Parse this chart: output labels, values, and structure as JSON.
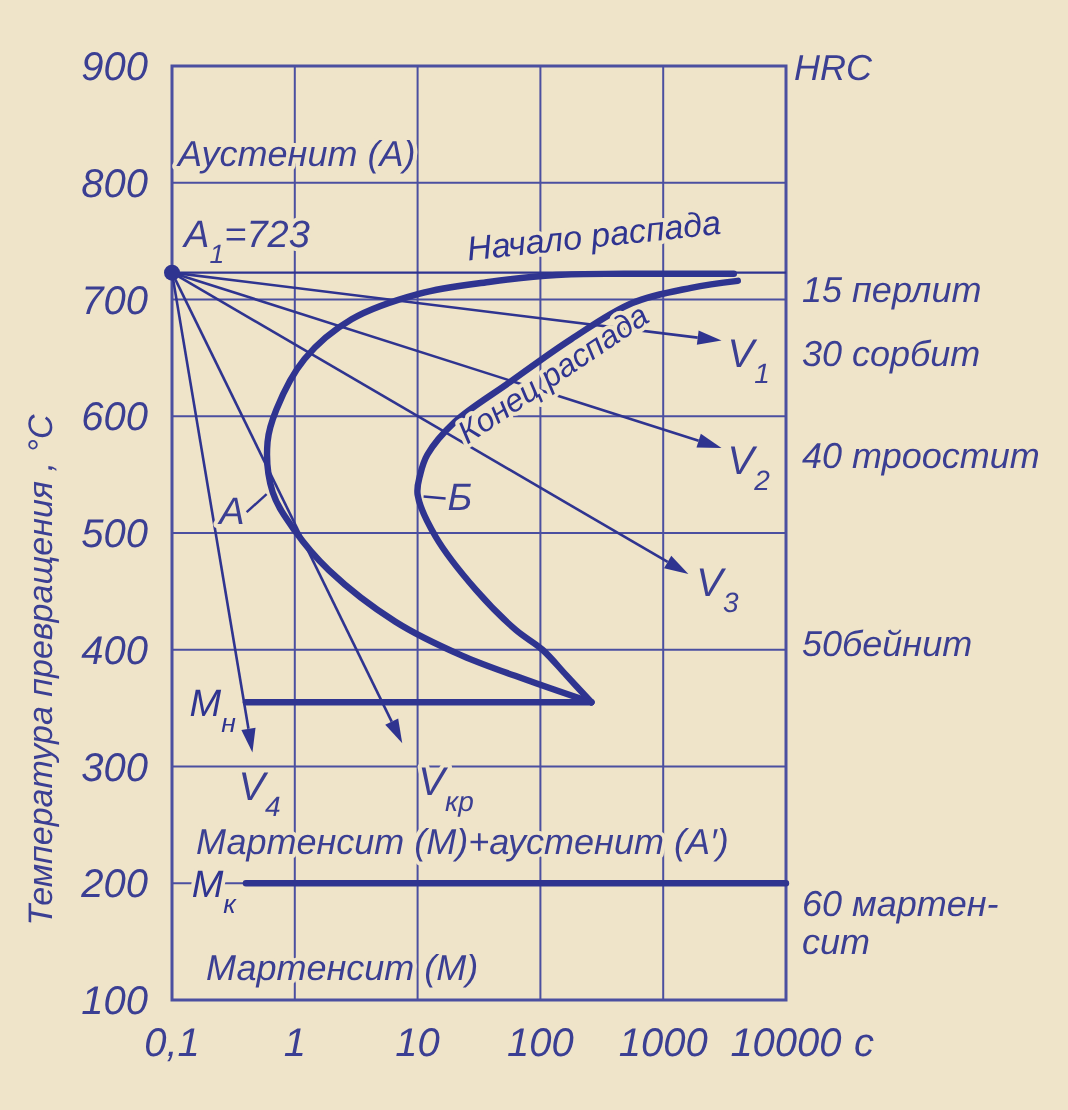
{
  "chart_data": {
    "type": "line",
    "ylabel": "Температура превращения , °С",
    "xlabel": "с",
    "xlim": [
      0.1,
      10000
    ],
    "xticks": [
      {
        "value": 0.1,
        "label": "0,1"
      },
      1,
      10,
      100,
      1000,
      10000
    ],
    "ylim": [
      100,
      900
    ],
    "yticks": [
      100,
      200,
      300,
      400,
      500,
      600,
      700,
      800,
      900
    ],
    "log": "x",
    "grid": true,
    "series": [
      {
        "name": "Начало распада",
        "color": "#2f3490",
        "x": [
          3760,
          480,
          135,
          38,
          10.4,
          2.9,
          1.2,
          0.71,
          0.6,
          0.66,
          1.0,
          1.9,
          6.6,
          23,
          83,
          260
        ],
        "values": [
          722,
          722,
          721,
          715,
          705,
          683,
          649,
          606,
          578,
          535,
          502,
          468,
          424,
          395,
          373,
          355
        ]
      },
      {
        "name": "Конец распада",
        "color": "#2f3490",
        "x": [
          4050,
          1690,
          560,
          178,
          56,
          20,
          12,
          10.5,
          10,
          14,
          30,
          63,
          104,
          163,
          260
        ],
        "values": [
          716,
          710,
          697,
          666,
          629,
          595,
          567,
          550,
          533,
          497,
          451,
          417,
          400,
          378,
          355
        ]
      },
      {
        "name": "М$_{н}$",
        "color": "#2f3490",
        "x": [
          0.4,
          260
        ],
        "values": [
          355,
          355
        ]
      },
      {
        "name": "М$_{к}$",
        "color": "#2f3490",
        "x": [
          0.4,
          10000
        ],
        "values": [
          200,
          200
        ]
      },
      {
        "type": "scatter",
        "marker": "circle",
        "color": "#2f3490",
        "x": [
          0.1
        ],
        "values": [
          723
        ]
      }
    ],
    "ref_lines": [
      {
        "axis": "y",
        "value": 723,
        "label": "А$_{1}$=723"
      }
    ],
    "annotations": [
      "Аустенит (А)",
      "Мартенсит (М)+аустенит (А′)",
      "Мартенсит (М)",
      "HRC",
      "15 перлит",
      "30 сорбит",
      "40 троостит",
      "50бейнит",
      "60 мартен-\nсит",
      "V$_{1}$",
      "V$_{2}$",
      "V$_{3}$",
      "V$_{кр}$",
      "V$_{4}$",
      {
        "text": "А",
        "x": 0.66,
        "y": 535
      },
      {
        "text": "Б",
        "x": 10,
        "y": 533
      }
    ]
  }
}
